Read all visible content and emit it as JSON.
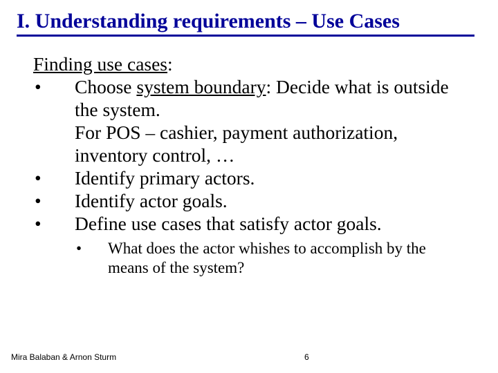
{
  "colors": {
    "title_color": "#000099",
    "rule_color": "#000099",
    "text_color": "#000000",
    "background": "#ffffff"
  },
  "typography": {
    "title_fontsize": 30,
    "body_fontsize": 27.5,
    "sub_fontsize": 23,
    "footer_fontsize": 12,
    "body_font": "Times New Roman",
    "footer_font": "Arial"
  },
  "title": "I. Understanding requirements – Use Cases",
  "heading_pre": "Finding use cases",
  "heading_post": ":",
  "items": [
    {
      "prefix": "Choose ",
      "underlined": "system boundary",
      "suffix": ": Decide what is outside the system.",
      "cont": "For POS – cashier, payment authorization, inventory control, …"
    },
    {
      "text": "Identify primary actors."
    },
    {
      "text": "Identify actor goals."
    },
    {
      "text": "Define use cases that satisfy actor goals."
    }
  ],
  "sub": {
    "text": "What does the actor whishes to accomplish by the means of the system?"
  },
  "footer": {
    "authors": "Mira Balaban  &  Arnon Sturm",
    "page": "6"
  }
}
